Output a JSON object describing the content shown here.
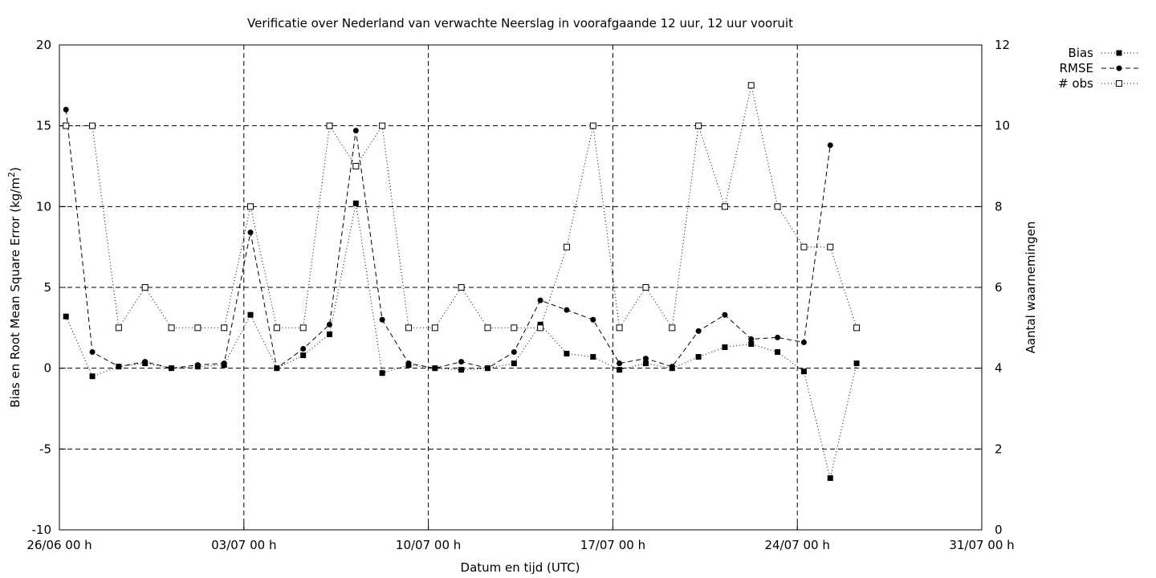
{
  "chart_data": {
    "type": "line",
    "title": "Verificatie over Nederland van verwachte Neerslag in voorafgaande 12 uur, 12 uur vooruit",
    "xlabel": "Datum en tijd (UTC)",
    "ylabel": "Bias en Root Mean Square Error (kg/m²)",
    "ylabel_main": "Bias en Root Mean Square Error (kg/m",
    "ylabel_sup": "2",
    "ylabel_end": ")",
    "y2label": "Aantal waarnemingen",
    "ylim": [
      -10,
      20
    ],
    "y2lim": [
      0,
      12
    ],
    "x_unit": "day",
    "xlim": [
      0,
      35
    ],
    "x_ticks": [
      {
        "x": 0,
        "label": "26/06 00 h"
      },
      {
        "x": 7,
        "label": "03/07 00 h"
      },
      {
        "x": 14,
        "label": "10/07 00 h"
      },
      {
        "x": 21,
        "label": "17/07 00 h"
      },
      {
        "x": 28,
        "label": "24/07 00 h"
      },
      {
        "x": 35,
        "label": "31/07 00 h"
      }
    ],
    "y_ticks": [
      {
        "v": -10,
        "label": "-10"
      },
      {
        "v": -5,
        "label": "-5"
      },
      {
        "v": 0,
        "label": "0"
      },
      {
        "v": 5,
        "label": "5"
      },
      {
        "v": 10,
        "label": "10"
      },
      {
        "v": 15,
        "label": "15"
      },
      {
        "v": 20,
        "label": "20"
      }
    ],
    "y2_ticks": [
      {
        "v": 0,
        "label": "0"
      },
      {
        "v": 2,
        "label": "2"
      },
      {
        "v": 4,
        "label": "4"
      },
      {
        "v": 6,
        "label": "6"
      },
      {
        "v": 8,
        "label": "8"
      },
      {
        "v": 10,
        "label": "10"
      },
      {
        "v": 12,
        "label": "12"
      }
    ],
    "grid": true,
    "legend_position": "top-right, outside plot",
    "x": [
      0.25,
      1.25,
      2.25,
      3.25,
      4.25,
      5.25,
      6.25,
      7.25,
      8.25,
      9.25,
      10.25,
      11.25,
      12.25,
      13.25,
      14.25,
      15.25,
      16.25,
      17.25,
      18.25,
      19.25,
      20.25,
      21.25,
      22.25,
      23.25,
      24.25,
      25.25,
      26.25,
      27.25,
      28.25,
      29.25,
      30.25
    ],
    "series": [
      {
        "name": "Bias",
        "axis": "left",
        "marker": "filled-square",
        "dash": "1,3",
        "values": [
          3.2,
          -0.5,
          0.1,
          0.3,
          0.0,
          0.1,
          0.2,
          3.3,
          0.0,
          0.8,
          2.1,
          10.2,
          -0.3,
          0.2,
          0.0,
          -0.1,
          0.0,
          0.3,
          2.7,
          0.9,
          0.7,
          -0.1,
          0.3,
          0.0,
          0.7,
          1.3,
          1.5,
          1.0,
          -0.2,
          -6.8,
          0.3
        ]
      },
      {
        "name": "RMSE",
        "axis": "left",
        "marker": "filled-circle",
        "dash": "6,4",
        "values": [
          16.0,
          1.0,
          0.1,
          0.4,
          0.0,
          0.2,
          0.3,
          8.4,
          0.0,
          1.2,
          2.7,
          14.7,
          3.0,
          0.3,
          0.0,
          0.4,
          0.0,
          1.0,
          4.2,
          3.6,
          3.0,
          0.3,
          0.6,
          0.1,
          2.3,
          3.3,
          1.8,
          1.9,
          1.6,
          13.8,
          null
        ]
      },
      {
        "name": "# obs",
        "axis": "right",
        "marker": "open-square",
        "dash": "1,3",
        "values": [
          10,
          10,
          5,
          6,
          5,
          5,
          5,
          8,
          5,
          5,
          10,
          9,
          10,
          5,
          5,
          6,
          5,
          5,
          5,
          7,
          10,
          5,
          6,
          5,
          10,
          8,
          11,
          8,
          7,
          7,
          5
        ]
      }
    ]
  }
}
